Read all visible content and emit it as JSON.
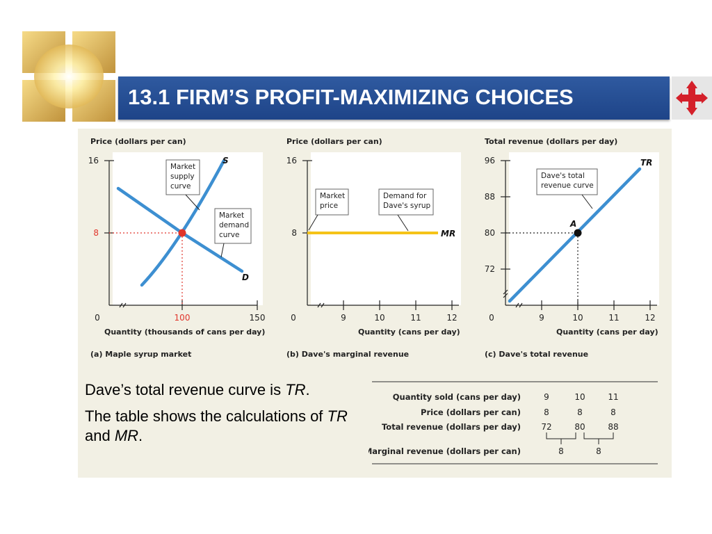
{
  "title": "13.1 FIRM’S PROFIT-MAXIMIZING CHOICES",
  "body": {
    "line1_plain": "Dave’s total revenue curve is ",
    "line1_italic": "TR",
    "line1_end": ".",
    "line2_plain": "The table shows the calculations of ",
    "line2_italic1": "TR",
    "line2_mid": " and ",
    "line2_italic2": "MR",
    "line2_end": "."
  },
  "colors": {
    "curve": "#3d8fd1",
    "mr": "#f5c318",
    "point": "#e0352b",
    "title_bg": "#26509a",
    "panel_bg": "#f2f0e4"
  },
  "chart_data": [
    {
      "type": "line",
      "caption": "(a) Maple syrup market",
      "ylabel": "Price (dollars per can)",
      "xlabel": "Quantity (thousands of cans per day)",
      "x_ticks": [
        "0",
        "100",
        "150"
      ],
      "y_ticks": [
        "16",
        "8"
      ],
      "xlim": [
        0,
        150
      ],
      "ylim": [
        0,
        16
      ],
      "series": [
        {
          "name": "S",
          "x": [
            60,
            80,
            100,
            115,
            130,
            145
          ],
          "y": [
            2,
            5,
            8,
            11.5,
            15,
            18.5
          ]
        },
        {
          "name": "D",
          "x": [
            10,
            55,
            100,
            135,
            155
          ],
          "y": [
            13.5,
            10.8,
            8,
            5.2,
            3.2
          ]
        }
      ],
      "equilibrium": {
        "x": 100,
        "y": 8
      },
      "annotations": [
        "Market supply curve",
        "Market demand curve"
      ]
    },
    {
      "type": "line",
      "caption": "(b) Dave's marginal revenue",
      "ylabel": "Price (dollars per can)",
      "xlabel": "Quantity (cans per day)",
      "x_ticks": [
        "0",
        "9",
        "10",
        "11",
        "12"
      ],
      "y_ticks": [
        "16",
        "8"
      ],
      "ylim": [
        0,
        16
      ],
      "series": [
        {
          "name": "MR",
          "x": [
            8,
            12
          ],
          "y": [
            8,
            8
          ]
        }
      ],
      "annotations": [
        "Market price",
        "Demand for Dave's syrup"
      ]
    },
    {
      "type": "line",
      "caption": "(c) Dave's total revenue",
      "ylabel": "Total revenue (dollars per day)",
      "xlabel": "Quantity (cans per day)",
      "x_ticks": [
        "0",
        "9",
        "10",
        "11",
        "12"
      ],
      "y_ticks": [
        "96",
        "88",
        "80",
        "72"
      ],
      "ylim": [
        64,
        96
      ],
      "series": [
        {
          "name": "TR",
          "x": [
            8,
            9,
            10,
            11,
            12
          ],
          "y": [
            64,
            72,
            80,
            88,
            96
          ]
        }
      ],
      "point": {
        "label": "A",
        "x": 10,
        "y": 80
      },
      "annotations": [
        "Dave's total revenue curve"
      ]
    },
    {
      "type": "table",
      "rows": [
        {
          "label": "Quantity sold (cans per day)",
          "values": [
            "9",
            "10",
            "11"
          ]
        },
        {
          "label": "Price (dollars per can)",
          "values": [
            "8",
            "8",
            "8"
          ]
        },
        {
          "label": "Total revenue (dollars per day)",
          "values": [
            "72",
            "80",
            "88"
          ]
        },
        {
          "label": "Marginal revenue (dollars per can)",
          "values": [
            "8",
            "8"
          ]
        }
      ]
    }
  ]
}
